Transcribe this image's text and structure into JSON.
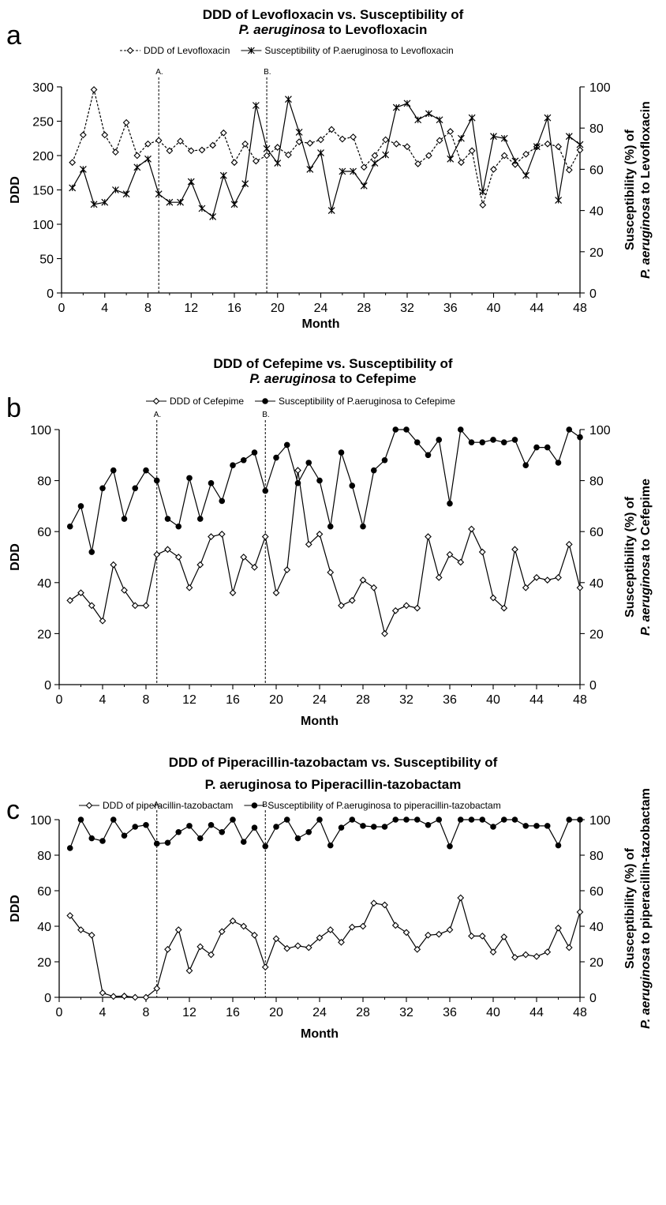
{
  "chart_data": [
    {
      "panel": "a",
      "type": "line",
      "title_line1": "DDD of Levofloxacin vs. Susceptibility of",
      "title_line2_italic": "P. aeruginosa",
      "title_line2_rest": " to Levofloxacin",
      "xlabel": "Month",
      "ylabel": "DDD",
      "ylabel_right_line1": "Susceptibility (%) of",
      "ylabel_right_line2_italic": "P. aeruginosa",
      "ylabel_right_line2_rest": " to Levofloxacin",
      "xlim": [
        0,
        48
      ],
      "ylim": [
        0,
        300
      ],
      "ylim_right": [
        0,
        100
      ],
      "xticks": [
        "0",
        "4",
        "8",
        "12",
        "16",
        "20",
        "24",
        "28",
        "32",
        "36",
        "40",
        "44",
        "48"
      ],
      "yticks": [
        "0",
        "50",
        "100",
        "150",
        "200",
        "250",
        "300"
      ],
      "yticks_right": [
        "0",
        "20",
        "40",
        "60",
        "80",
        "100"
      ],
      "markers": [
        {
          "label": "A.",
          "x": 9
        },
        {
          "label": "B.",
          "x": 19
        }
      ],
      "series": [
        {
          "name": "DDD of Levofloxacin",
          "axis": "left",
          "line_style": "dashed",
          "marker": "open-diamond",
          "x": [
            1,
            2,
            3,
            4,
            5,
            6,
            7,
            8,
            9,
            10,
            11,
            12,
            13,
            14,
            15,
            16,
            17,
            18,
            19,
            20,
            21,
            22,
            23,
            24,
            25,
            26,
            27,
            28,
            29,
            30,
            31,
            32,
            33,
            34,
            35,
            36,
            37,
            38,
            39,
            40,
            41,
            42,
            43,
            44,
            45,
            46,
            47,
            48
          ],
          "values": [
            190,
            230,
            296,
            230,
            205,
            248,
            200,
            217,
            222,
            207,
            221,
            207,
            208,
            215,
            233,
            190,
            217,
            192,
            200,
            212,
            201,
            220,
            218,
            223,
            238,
            224,
            227,
            183,
            200,
            223,
            217,
            213,
            188,
            200,
            222,
            235,
            190,
            207,
            128,
            180,
            200,
            187,
            202,
            213,
            217,
            213,
            179,
            208
          ]
        },
        {
          "name": "Susceptibility of P.aeruginosa to Levofloxacin",
          "axis": "right",
          "line_style": "solid",
          "marker": "asterisk",
          "x": [
            1,
            2,
            3,
            4,
            5,
            6,
            7,
            8,
            9,
            10,
            11,
            12,
            13,
            14,
            15,
            16,
            17,
            18,
            19,
            20,
            21,
            22,
            23,
            24,
            25,
            26,
            27,
            28,
            29,
            30,
            31,
            32,
            33,
            34,
            35,
            36,
            37,
            38,
            39,
            40,
            41,
            42,
            43,
            44,
            45,
            46,
            47,
            48
          ],
          "values": [
            51,
            60,
            43,
            44,
            50,
            48,
            61,
            65,
            48,
            44,
            44,
            54,
            41,
            37,
            57,
            43,
            53,
            91,
            70,
            63,
            94,
            78,
            60,
            68,
            40,
            59,
            59,
            52,
            63,
            67,
            90,
            92,
            84,
            87,
            84,
            65,
            75,
            85,
            49,
            76,
            75,
            64,
            57,
            71,
            85,
            45,
            76,
            72
          ]
        }
      ]
    },
    {
      "panel": "b",
      "type": "line",
      "title_line1": "DDD of Cefepime vs. Susceptibility of",
      "title_line2_italic": "P. aeruginosa",
      "title_line2_rest": " to Cefepime",
      "xlabel": "Month",
      "ylabel": "DDD",
      "ylabel_right_line1": "Susceptibility (%) of",
      "ylabel_right_line2_italic": "P. aeruginosa",
      "ylabel_right_line2_rest": " to Cefepime",
      "xlim": [
        0,
        48
      ],
      "ylim": [
        0,
        100
      ],
      "ylim_right": [
        0,
        100
      ],
      "xticks": [
        "0",
        "4",
        "8",
        "12",
        "16",
        "20",
        "24",
        "28",
        "32",
        "36",
        "40",
        "44",
        "48"
      ],
      "yticks": [
        "0",
        "20",
        "40",
        "60",
        "80",
        "100"
      ],
      "yticks_right": [
        "0",
        "20",
        "40",
        "60",
        "80",
        "100"
      ],
      "markers": [
        {
          "label": "A.",
          "x": 9
        },
        {
          "label": "B.",
          "x": 19
        }
      ],
      "series": [
        {
          "name": "DDD of Cefepime",
          "axis": "left",
          "line_style": "solid",
          "marker": "open-diamond",
          "x": [
            1,
            2,
            3,
            4,
            5,
            6,
            7,
            8,
            9,
            10,
            11,
            12,
            13,
            14,
            15,
            16,
            17,
            18,
            19,
            20,
            21,
            22,
            23,
            24,
            25,
            26,
            27,
            28,
            29,
            30,
            31,
            32,
            33,
            34,
            35,
            36,
            37,
            38,
            39,
            40,
            41,
            42,
            43,
            44,
            45,
            46,
            47,
            48
          ],
          "values": [
            33,
            36,
            31,
            25,
            47,
            37,
            31,
            31,
            51,
            53,
            50,
            38,
            47,
            58,
            59,
            36,
            50,
            46,
            58,
            36,
            45,
            84,
            55,
            59,
            44,
            31,
            33,
            41,
            38,
            20,
            29,
            31,
            30,
            58,
            42,
            51,
            48,
            61,
            52,
            34,
            30,
            53,
            38,
            42,
            41,
            42,
            55,
            38
          ]
        },
        {
          "name": "Susceptibility of P.aeruginosa to Cefepime",
          "axis": "right",
          "line_style": "solid",
          "marker": "filled-circle",
          "x": [
            1,
            2,
            3,
            4,
            5,
            6,
            7,
            8,
            9,
            10,
            11,
            12,
            13,
            14,
            15,
            16,
            17,
            18,
            19,
            20,
            21,
            22,
            23,
            24,
            25,
            26,
            27,
            28,
            29,
            30,
            31,
            32,
            33,
            34,
            35,
            36,
            37,
            38,
            39,
            40,
            41,
            42,
            43,
            44,
            45,
            46,
            47,
            48
          ],
          "values": [
            62,
            70,
            52,
            77,
            84,
            65,
            77,
            84,
            80,
            65,
            62,
            81,
            65,
            79,
            72,
            86,
            88,
            91,
            76,
            89,
            94,
            79,
            87,
            80,
            62,
            91,
            78,
            62,
            84,
            88,
            100,
            100,
            95,
            90,
            96,
            71,
            100,
            95,
            95,
            96,
            95,
            96,
            86,
            93,
            93,
            87,
            100,
            97
          ]
        }
      ]
    },
    {
      "panel": "c",
      "type": "line",
      "title_line1": "DDD of Piperacillin-tazobactam vs. Susceptibility of",
      "title_line2_italic": "",
      "title_line2_rest": "P. aeruginosa to Piperacillin-tazobactam",
      "xlabel": "Month",
      "ylabel": "DDD",
      "ylabel_right_line1": "Susceptibility (%) of",
      "ylabel_right_line2_italic": "P. aeruginosa",
      "ylabel_right_line2_rest": " to piperacillin-tazobactam",
      "xlim": [
        0,
        48
      ],
      "ylim": [
        0,
        100
      ],
      "ylim_right": [
        0,
        100
      ],
      "xticks": [
        "0",
        "4",
        "8",
        "12",
        "16",
        "20",
        "24",
        "28",
        "32",
        "36",
        "40",
        "44",
        "48"
      ],
      "yticks": [
        "0",
        "20",
        "40",
        "60",
        "80",
        "100"
      ],
      "yticks_right": [
        "0",
        "20",
        "40",
        "60",
        "80",
        "100"
      ],
      "markers": [
        {
          "label": "A.",
          "x": 9
        },
        {
          "label": "B.",
          "x": 19
        }
      ],
      "series": [
        {
          "name": "DDD of piperacillin-tazobactam",
          "axis": "left",
          "line_style": "solid",
          "marker": "open-diamond",
          "x": [
            1,
            2,
            3,
            4,
            5,
            6,
            7,
            8,
            9,
            10,
            11,
            12,
            13,
            14,
            15,
            16,
            17,
            18,
            19,
            20,
            21,
            22,
            23,
            24,
            25,
            26,
            27,
            28,
            29,
            30,
            31,
            32,
            33,
            34,
            35,
            36,
            37,
            38,
            39,
            40,
            41,
            42,
            43,
            44,
            45,
            46,
            47,
            48
          ],
          "values": [
            46,
            38,
            35,
            2.5,
            0.5,
            0.7,
            0,
            0,
            5,
            27,
            38,
            15,
            28.5,
            24,
            37,
            43,
            40,
            35,
            17,
            33,
            27.5,
            29,
            28,
            33.5,
            38,
            31,
            39.5,
            40,
            53,
            52,
            40.5,
            36.5,
            27,
            35,
            35.5,
            38,
            56,
            34.5,
            34.5,
            25.5,
            34,
            22.5,
            24,
            23,
            25.5,
            39,
            28,
            48
          ]
        },
        {
          "name": "Susceptibility of P.aeruginosa to piperacillin-tazobactam",
          "axis": "right",
          "line_style": "solid",
          "marker": "filled-circle",
          "x": [
            1,
            2,
            3,
            4,
            5,
            6,
            7,
            8,
            9,
            10,
            11,
            12,
            13,
            14,
            15,
            16,
            17,
            18,
            19,
            20,
            21,
            22,
            23,
            24,
            25,
            26,
            27,
            28,
            29,
            30,
            31,
            32,
            33,
            34,
            35,
            36,
            37,
            38,
            39,
            40,
            41,
            42,
            43,
            44,
            45,
            46,
            47,
            48
          ],
          "values": [
            84,
            100,
            89.5,
            88,
            100,
            91,
            96,
            97,
            86.5,
            87,
            93,
            96.5,
            89.5,
            97,
            93,
            100,
            87.5,
            95.5,
            85,
            96,
            100,
            89.5,
            93,
            100,
            85.5,
            95.5,
            100,
            96.5,
            96,
            96,
            100,
            100,
            100,
            97,
            100,
            85,
            100,
            100,
            100,
            96,
            100,
            100,
            96.5,
            96.5,
            96.5,
            85.5,
            100,
            100
          ]
        }
      ]
    }
  ],
  "colors": {
    "line": "#000000",
    "background": "#ffffff"
  }
}
